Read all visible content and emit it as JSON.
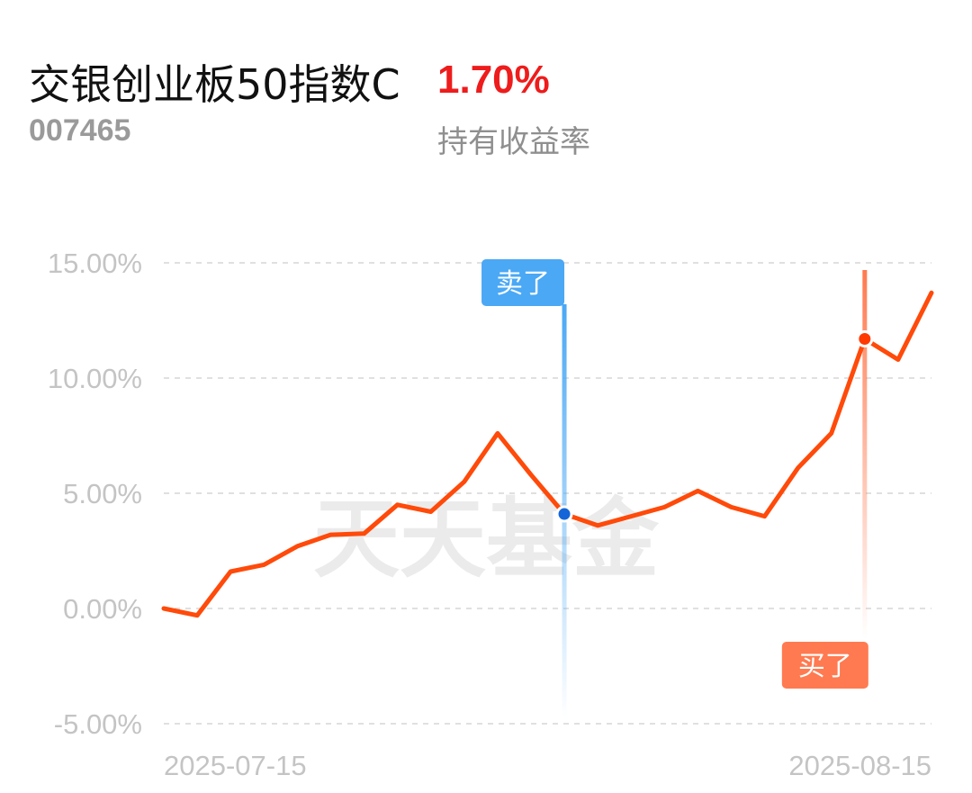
{
  "header": {
    "fund_name": "交银创业板50指数C",
    "fund_code": "007465",
    "holding_return": "1.70%",
    "holding_return_label": "持有收益率"
  },
  "colors": {
    "line": "#ff4a0a",
    "sell": "#4aa8f5",
    "buy": "#ff7a50",
    "return_text": "#ee1c1c",
    "grid": "#e0e0e0",
    "tick_text": "#c4c4c4"
  },
  "watermark": "天天基金",
  "chart_data": {
    "type": "line",
    "title": "",
    "xlabel": "",
    "ylabel": "",
    "ylim": [
      -5,
      15
    ],
    "yticks": [
      15,
      10,
      5,
      0,
      -5
    ],
    "ytick_labels": [
      "15.00%",
      "10.00%",
      "5.00%",
      "0.00%",
      "-5.00%"
    ],
    "xtick_labels": [
      "2025-07-15",
      "2025-08-15"
    ],
    "grid": true,
    "series": [
      {
        "values": [
          0.0,
          -0.3,
          1.6,
          1.9,
          2.7,
          3.2,
          3.25,
          4.5,
          4.2,
          5.5,
          7.6,
          5.8,
          4.1,
          3.6,
          4.0,
          4.4,
          5.1,
          4.4,
          4.0,
          6.1,
          7.6,
          11.7,
          10.8,
          13.7
        ]
      }
    ],
    "annotations": [
      {
        "label": "卖了",
        "index": 12,
        "value": 4.1,
        "kind": "sell"
      },
      {
        "label": "买了",
        "index": 21,
        "value": 11.7,
        "kind": "buy"
      }
    ]
  }
}
